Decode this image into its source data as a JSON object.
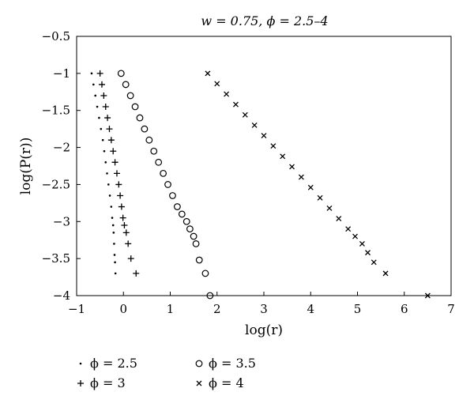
{
  "chart_data": {
    "type": "scatter",
    "title": "w = 0.75, ϕ = 2.5–4",
    "xlabel": "log(r)",
    "ylabel": "log(P(r))",
    "xlim": [
      -1,
      7
    ],
    "ylim": [
      -4,
      -0.5
    ],
    "x_ticks": [
      -1,
      0,
      1,
      2,
      3,
      4,
      5,
      6,
      7
    ],
    "y_ticks": [
      -0.5,
      -1,
      -1.5,
      -2,
      -2.5,
      -3,
      -3.5,
      -4
    ],
    "x_tick_labels": [
      "−1",
      "0",
      "1",
      "2",
      "3",
      "4",
      "5",
      "6",
      "7"
    ],
    "y_tick_labels": [
      "−0.5",
      "−1",
      "−1.5",
      "−2",
      "−2.5",
      "−3",
      "−3.5",
      "−4"
    ],
    "grid": false,
    "legend_position": "bottom",
    "series": [
      {
        "name": "ϕ = 2.5",
        "marker": "dot",
        "points": [
          [
            -0.68,
            -1.0
          ],
          [
            -0.64,
            -1.15
          ],
          [
            -0.6,
            -1.3
          ],
          [
            -0.56,
            -1.45
          ],
          [
            -0.52,
            -1.6
          ],
          [
            -0.48,
            -1.75
          ],
          [
            -0.44,
            -1.9
          ],
          [
            -0.41,
            -2.05
          ],
          [
            -0.38,
            -2.2
          ],
          [
            -0.35,
            -2.35
          ],
          [
            -0.32,
            -2.5
          ],
          [
            -0.29,
            -2.65
          ],
          [
            -0.26,
            -2.8
          ],
          [
            -0.24,
            -2.95
          ],
          [
            -0.22,
            -3.05
          ],
          [
            -0.21,
            -3.15
          ],
          [
            -0.2,
            -3.3
          ],
          [
            -0.19,
            -3.45
          ],
          [
            -0.18,
            -3.55
          ],
          [
            -0.17,
            -3.7
          ]
        ]
      },
      {
        "name": "ϕ = 3",
        "marker": "plus",
        "points": [
          [
            -0.5,
            -1.0
          ],
          [
            -0.46,
            -1.15
          ],
          [
            -0.42,
            -1.3
          ],
          [
            -0.38,
            -1.45
          ],
          [
            -0.34,
            -1.6
          ],
          [
            -0.3,
            -1.75
          ],
          [
            -0.26,
            -1.9
          ],
          [
            -0.22,
            -2.05
          ],
          [
            -0.18,
            -2.2
          ],
          [
            -0.14,
            -2.35
          ],
          [
            -0.1,
            -2.5
          ],
          [
            -0.07,
            -2.65
          ],
          [
            -0.04,
            -2.8
          ],
          [
            -0.01,
            -2.95
          ],
          [
            0.02,
            -3.05
          ],
          [
            0.06,
            -3.15
          ],
          [
            0.1,
            -3.3
          ],
          [
            0.16,
            -3.5
          ],
          [
            0.27,
            -3.7
          ]
        ]
      },
      {
        "name": "ϕ = 3.5",
        "marker": "circle",
        "points": [
          [
            -0.05,
            -1.0
          ],
          [
            0.05,
            -1.15
          ],
          [
            0.15,
            -1.3
          ],
          [
            0.25,
            -1.45
          ],
          [
            0.35,
            -1.6
          ],
          [
            0.45,
            -1.75
          ],
          [
            0.55,
            -1.9
          ],
          [
            0.65,
            -2.05
          ],
          [
            0.75,
            -2.2
          ],
          [
            0.85,
            -2.35
          ],
          [
            0.95,
            -2.5
          ],
          [
            1.05,
            -2.65
          ],
          [
            1.15,
            -2.8
          ],
          [
            1.25,
            -2.9
          ],
          [
            1.35,
            -3.0
          ],
          [
            1.42,
            -3.1
          ],
          [
            1.5,
            -3.2
          ],
          [
            1.55,
            -3.3
          ],
          [
            1.62,
            -3.52
          ],
          [
            1.75,
            -3.7
          ],
          [
            1.85,
            -4.0
          ]
        ]
      },
      {
        "name": "ϕ = 4",
        "marker": "cross",
        "points": [
          [
            1.8,
            -1.0
          ],
          [
            2.0,
            -1.14
          ],
          [
            2.2,
            -1.28
          ],
          [
            2.4,
            -1.42
          ],
          [
            2.6,
            -1.56
          ],
          [
            2.8,
            -1.7
          ],
          [
            3.0,
            -1.84
          ],
          [
            3.2,
            -1.98
          ],
          [
            3.4,
            -2.12
          ],
          [
            3.6,
            -2.26
          ],
          [
            3.8,
            -2.4
          ],
          [
            4.0,
            -2.54
          ],
          [
            4.2,
            -2.68
          ],
          [
            4.4,
            -2.82
          ],
          [
            4.6,
            -2.96
          ],
          [
            4.8,
            -3.1
          ],
          [
            4.95,
            -3.2
          ],
          [
            5.1,
            -3.3
          ],
          [
            5.22,
            -3.42
          ],
          [
            5.35,
            -3.55
          ],
          [
            5.6,
            -3.7
          ],
          [
            6.5,
            -4.0
          ]
        ]
      }
    ]
  }
}
